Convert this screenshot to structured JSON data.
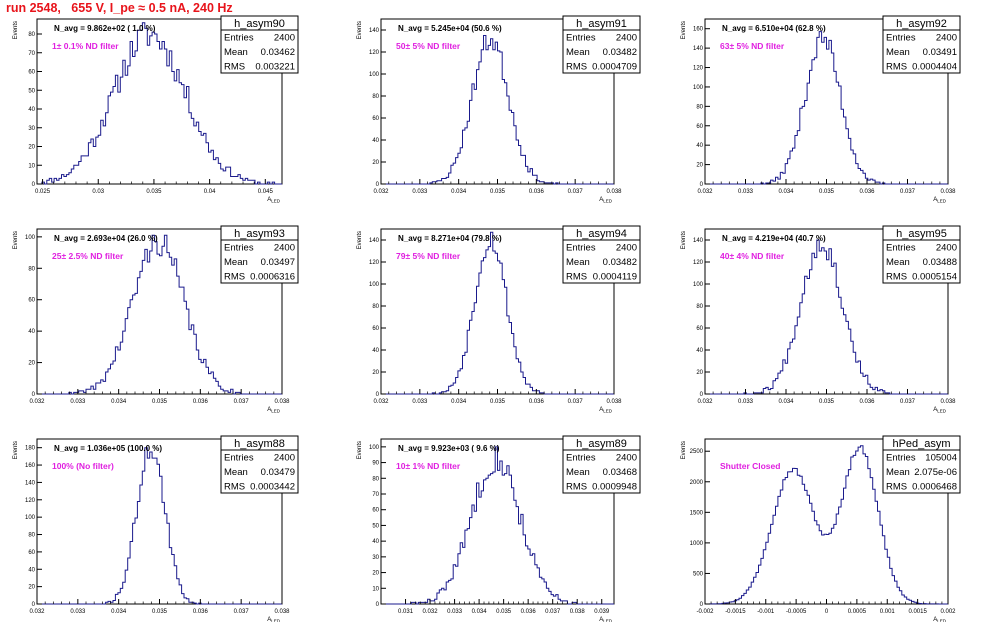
{
  "page": {
    "title": "run 2548,   655 V, I_pe ≈ 0.5 nA, 240 Hz"
  },
  "colors": {
    "title": "#e8141b",
    "filter_text": "#e020e0",
    "histogram": "#1a1a8c",
    "frame": "#000000"
  },
  "chart_data": [
    {
      "type": "histogram",
      "name": "h_asym90",
      "navg": "N_avg = 9.862e+02 ( 1.0 %)",
      "filter": "1± 0.1% ND filter",
      "stats": {
        "entries": "2400",
        "mean": "0.03462",
        "rms": "0.003221"
      },
      "xlim": [
        0.0245,
        0.0465
      ],
      "ylim": [
        0,
        88
      ],
      "xticks": [
        0.025,
        0.03,
        0.035,
        0.04,
        0.045
      ],
      "xtick_labels": [
        "0.025",
        "0.03",
        "0.035",
        "0.04",
        "0.045"
      ],
      "yticks": [
        0,
        10,
        20,
        30,
        40,
        50,
        60,
        70,
        80
      ],
      "ytick_labels": [
        "0",
        "10",
        "20",
        "30",
        "40",
        "50",
        "60",
        "70",
        "80"
      ],
      "xlabel": "A_LED",
      "ylabel": "Events",
      "mean": 0.03462,
      "sigma": 0.003221,
      "peak": 80,
      "bins": 100,
      "seed": 11
    },
    {
      "type": "histogram",
      "name": "h_asym91",
      "navg": "N_avg = 5.245e+04 (50.6 %)",
      "filter": "50± 5% ND filter",
      "stats": {
        "entries": "2400",
        "mean": "0.03482",
        "rms": "0.0004709"
      },
      "xlim": [
        0.032,
        0.038
      ],
      "ylim": [
        0,
        150
      ],
      "xticks": [
        0.032,
        0.033,
        0.034,
        0.035,
        0.036,
        0.037,
        0.038
      ],
      "xtick_labels": [
        "0.032",
        "0.033",
        "0.034",
        "0.035",
        "0.036",
        "0.037",
        "0.038"
      ],
      "yticks": [
        0,
        20,
        40,
        60,
        80,
        100,
        120,
        140
      ],
      "ytick_labels": [
        "0",
        "20",
        "40",
        "60",
        "80",
        "100",
        "120",
        "140"
      ],
      "xlabel": "A_LED",
      "ylabel": "Events",
      "mean": 0.03482,
      "sigma": 0.0004709,
      "peak": 132,
      "bins": 100,
      "seed": 23
    },
    {
      "type": "histogram",
      "name": "h_asym92",
      "navg": "N_avg = 6.510e+04 (62.8 %)",
      "filter": "63± 5% ND filter",
      "stats": {
        "entries": "2400",
        "mean": "0.03491",
        "rms": "0.0004404"
      },
      "xlim": [
        0.032,
        0.038
      ],
      "ylim": [
        0,
        170
      ],
      "xticks": [
        0.032,
        0.033,
        0.034,
        0.035,
        0.036,
        0.037,
        0.038
      ],
      "xtick_labels": [
        "0.032",
        "0.033",
        "0.034",
        "0.035",
        "0.036",
        "0.037",
        "0.038"
      ],
      "yticks": [
        0,
        20,
        40,
        60,
        80,
        100,
        120,
        140,
        160
      ],
      "ytick_labels": [
        "0",
        "20",
        "40",
        "60",
        "80",
        "100",
        "120",
        "140",
        "160"
      ],
      "xlabel": "A_LED",
      "ylabel": "Events",
      "mean": 0.03491,
      "sigma": 0.0004404,
      "peak": 150,
      "bins": 100,
      "seed": 37
    },
    {
      "type": "histogram",
      "name": "h_asym93",
      "navg": "N_avg = 2.693e+04 (26.0 %)",
      "filter": "25± 2.5% ND filter",
      "stats": {
        "entries": "2400",
        "mean": "0.03497",
        "rms": "0.0006316"
      },
      "xlim": [
        0.032,
        0.038
      ],
      "ylim": [
        0,
        105
      ],
      "xticks": [
        0.032,
        0.033,
        0.034,
        0.035,
        0.036,
        0.037,
        0.038
      ],
      "xtick_labels": [
        "0.032",
        "0.033",
        "0.034",
        "0.035",
        "0.036",
        "0.037",
        "0.038"
      ],
      "yticks": [
        0,
        20,
        40,
        60,
        80,
        100
      ],
      "ytick_labels": [
        "0",
        "20",
        "40",
        "60",
        "80",
        "100"
      ],
      "xlabel": "A_LED",
      "ylabel": "Events",
      "mean": 0.03497,
      "sigma": 0.0006316,
      "peak": 97,
      "bins": 100,
      "seed": 41
    },
    {
      "type": "histogram",
      "name": "h_asym94",
      "navg": "N_avg = 8.271e+04 (79.8 %)",
      "filter": "79± 5% ND filter",
      "stats": {
        "entries": "2400",
        "mean": "0.03482",
        "rms": "0.0004119"
      },
      "xlim": [
        0.032,
        0.038
      ],
      "ylim": [
        0,
        150
      ],
      "xticks": [
        0.032,
        0.033,
        0.034,
        0.035,
        0.036,
        0.037,
        0.038
      ],
      "xtick_labels": [
        "0.032",
        "0.033",
        "0.034",
        "0.035",
        "0.036",
        "0.037",
        "0.038"
      ],
      "yticks": [
        0,
        20,
        40,
        60,
        80,
        100,
        120,
        140
      ],
      "ytick_labels": [
        "0",
        "20",
        "40",
        "60",
        "80",
        "100",
        "120",
        "140"
      ],
      "xlabel": "A_LED",
      "ylabel": "Events",
      "mean": 0.03482,
      "sigma": 0.0004119,
      "peak": 142,
      "bins": 100,
      "seed": 53
    },
    {
      "type": "histogram",
      "name": "h_asym95",
      "navg": "N_avg = 4.219e+04 (40.7 %)",
      "filter": "40± 4% ND filter",
      "stats": {
        "entries": "2400",
        "mean": "0.03488",
        "rms": "0.0005154"
      },
      "xlim": [
        0.032,
        0.038
      ],
      "ylim": [
        0,
        150
      ],
      "xticks": [
        0.032,
        0.033,
        0.034,
        0.035,
        0.036,
        0.037,
        0.038
      ],
      "xtick_labels": [
        "0.032",
        "0.033",
        "0.034",
        "0.035",
        "0.036",
        "0.037",
        "0.038"
      ],
      "yticks": [
        0,
        20,
        40,
        60,
        80,
        100,
        120,
        140
      ],
      "ytick_labels": [
        "0",
        "20",
        "40",
        "60",
        "80",
        "100",
        "120",
        "140"
      ],
      "xlabel": "A_LED",
      "ylabel": "Events",
      "mean": 0.03488,
      "sigma": 0.0005154,
      "peak": 138,
      "bins": 100,
      "seed": 67
    },
    {
      "type": "histogram",
      "name": "h_asym88",
      "navg": "N_avg = 1.036e+05 (100.0 %)",
      "filter": "100% (No filter)",
      "stats": {
        "entries": "2400",
        "mean": "0.03479",
        "rms": "0.0003442"
      },
      "xlim": [
        0.032,
        0.038
      ],
      "ylim": [
        0,
        190
      ],
      "xticks": [
        0.032,
        0.033,
        0.034,
        0.035,
        0.036,
        0.037,
        0.038
      ],
      "xtick_labels": [
        "0.032",
        "0.033",
        "0.034",
        "0.035",
        "0.036",
        "0.037",
        "0.038"
      ],
      "yticks": [
        0,
        20,
        40,
        60,
        80,
        100,
        120,
        140,
        160,
        180
      ],
      "ytick_labels": [
        "0",
        "20",
        "40",
        "60",
        "80",
        "100",
        "120",
        "140",
        "160",
        "180"
      ],
      "xlabel": "A_LED",
      "ylabel": "Events",
      "mean": 0.03479,
      "sigma": 0.0003442,
      "peak": 180,
      "bins": 100,
      "seed": 71
    },
    {
      "type": "histogram",
      "name": "h_asym89",
      "navg": "N_avg = 9.923e+03 ( 9.6 %)",
      "filter": "10± 1% ND filter",
      "stats": {
        "entries": "2400",
        "mean": "0.03468",
        "rms": "0.0009948"
      },
      "xlim": [
        0.03,
        0.0395
      ],
      "ylim": [
        0,
        105
      ],
      "xticks": [
        0.031,
        0.032,
        0.033,
        0.034,
        0.035,
        0.036,
        0.037,
        0.038,
        0.039
      ],
      "xtick_labels": [
        "0.031",
        "0.032",
        "0.033",
        "0.034",
        "0.035",
        "0.036",
        "0.037",
        "0.038",
        "0.039"
      ],
      "yticks": [
        0,
        10,
        20,
        30,
        40,
        50,
        60,
        70,
        80,
        90,
        100
      ],
      "ytick_labels": [
        "0",
        "10",
        "20",
        "30",
        "40",
        "50",
        "60",
        "70",
        "80",
        "90",
        "100"
      ],
      "xlabel": "A_LED",
      "ylabel": "Events",
      "mean": 0.03468,
      "sigma": 0.0009948,
      "peak": 93,
      "bins": 100,
      "seed": 83
    },
    {
      "type": "histogram",
      "name": "hPed_asym",
      "navg": "",
      "filter": "Shutter Closed",
      "stats": {
        "entries": "105004",
        "mean": "2.075e-06",
        "rms": "0.0006468"
      },
      "xlim": [
        -0.002,
        0.002
      ],
      "ylim": [
        0,
        2700
      ],
      "xticks": [
        -0.002,
        -0.0015,
        -0.001,
        -0.0005,
        0,
        0.0005,
        0.001,
        0.0015,
        0.002
      ],
      "xtick_labels": [
        "-0.002",
        "-0.0015",
        "-0.001",
        "-0.0005",
        "0",
        "0.0005",
        "0.001",
        "0.0015",
        "0.002"
      ],
      "yticks": [
        0,
        500,
        1000,
        1500,
        2000,
        2500
      ],
      "ytick_labels": [
        "0",
        "500",
        "1000",
        "1500",
        "2000",
        "2500"
      ],
      "xlabel": "A_LED",
      "ylabel": "Events",
      "bimodal": {
        "means": [
          -0.00055,
          0.00055
        ],
        "sigmas": [
          0.00035,
          0.0003
        ],
        "peaks": [
          2200,
          2550
        ]
      },
      "bins": 100,
      "seed": 97
    }
  ]
}
